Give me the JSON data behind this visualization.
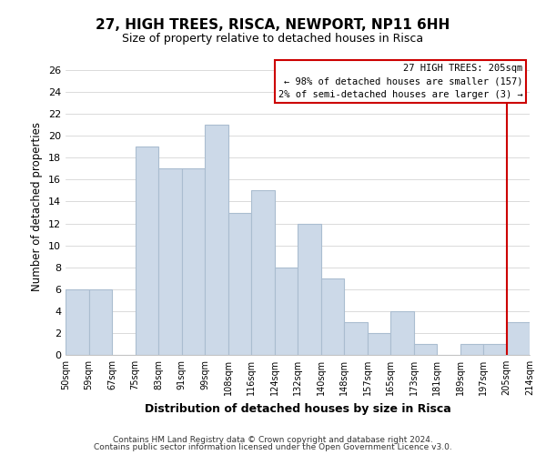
{
  "title": "27, HIGH TREES, RISCA, NEWPORT, NP11 6HH",
  "subtitle": "Size of property relative to detached houses in Risca",
  "xlabel": "Distribution of detached houses by size in Risca",
  "ylabel": "Number of detached properties",
  "bar_color": "#ccd9e8",
  "bar_edge_color": "#aabdd0",
  "bins": [
    "50sqm",
    "59sqm",
    "67sqm",
    "75sqm",
    "83sqm",
    "91sqm",
    "99sqm",
    "108sqm",
    "116sqm",
    "124sqm",
    "132sqm",
    "140sqm",
    "148sqm",
    "157sqm",
    "165sqm",
    "173sqm",
    "181sqm",
    "189sqm",
    "197sqm",
    "205sqm",
    "214sqm"
  ],
  "values": [
    6,
    6,
    0,
    19,
    17,
    17,
    21,
    13,
    15,
    8,
    12,
    7,
    3,
    2,
    4,
    1,
    0,
    1,
    1,
    3
  ],
  "ylim": [
    0,
    27
  ],
  "yticks": [
    0,
    2,
    4,
    6,
    8,
    10,
    12,
    14,
    16,
    18,
    20,
    22,
    24,
    26
  ],
  "marker_label": "27 HIGH TREES: 205sqm",
  "annotation_line1": "← 98% of detached houses are smaller (157)",
  "annotation_line2": "2% of semi-detached houses are larger (3) →",
  "annotation_box_color": "#ffffff",
  "annotation_box_edge_color": "#cc0000",
  "marker_line_color": "#cc0000",
  "footer1": "Contains HM Land Registry data © Crown copyright and database right 2024.",
  "footer2": "Contains public sector information licensed under the Open Government Licence v3.0.",
  "background_color": "#ffffff",
  "grid_color": "#cccccc"
}
